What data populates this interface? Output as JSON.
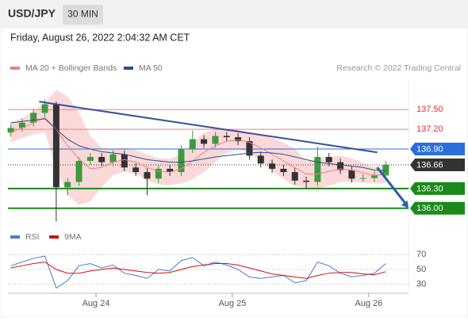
{
  "header": {
    "symbol": "USD/JPY",
    "interval": "30 MIN",
    "timestamp": "Friday, August 26, 2022 2:04:32 AM CET",
    "credit": "Research © 2022 Trading Central"
  },
  "chart_data": [
    {
      "type": "candlestick",
      "xlim": [
        -1,
        140
      ],
      "ylim": [
        135.72,
        137.72
      ],
      "up_color": "#3c9b3c",
      "down_color": "#333333",
      "x": [
        0,
        4,
        8,
        12,
        16,
        20,
        24,
        28,
        32,
        36,
        40,
        44,
        48,
        52,
        56,
        60,
        64,
        68,
        72,
        76,
        80,
        84,
        88,
        92,
        96,
        100,
        104,
        108,
        112,
        116,
        120,
        124,
        128,
        132
      ],
      "open": [
        137.15,
        137.22,
        137.3,
        137.45,
        137.58,
        136.32,
        136.4,
        136.72,
        136.78,
        136.7,
        136.82,
        136.62,
        136.55,
        136.45,
        136.6,
        136.55,
        136.9,
        137.05,
        136.98,
        137.1,
        137.08,
        137.02,
        136.8,
        136.68,
        136.6,
        136.55,
        136.42,
        136.4,
        136.78,
        136.7,
        136.58,
        136.45,
        136.46,
        136.5
      ],
      "high": [
        137.28,
        137.36,
        137.51,
        137.65,
        137.62,
        136.46,
        136.78,
        136.84,
        136.84,
        136.88,
        136.88,
        136.68,
        136.61,
        136.66,
        136.66,
        136.96,
        137.18,
        137.11,
        137.16,
        137.16,
        137.14,
        137.08,
        136.86,
        136.74,
        136.66,
        136.61,
        136.48,
        136.94,
        136.84,
        136.76,
        136.64,
        136.52,
        136.56,
        136.72
      ],
      "low": [
        137.09,
        137.16,
        137.24,
        137.39,
        135.8,
        136.2,
        136.34,
        136.66,
        136.64,
        136.64,
        136.56,
        136.49,
        136.2,
        136.39,
        136.49,
        136.49,
        136.84,
        136.92,
        136.92,
        137.02,
        136.96,
        136.74,
        136.62,
        136.54,
        136.49,
        136.36,
        136.3,
        136.34,
        136.64,
        136.52,
        136.39,
        136.4,
        136.4,
        136.44
      ],
      "close": [
        137.22,
        137.3,
        137.45,
        137.58,
        136.32,
        136.4,
        136.72,
        136.78,
        136.7,
        136.82,
        136.62,
        136.55,
        136.45,
        136.6,
        136.55,
        136.9,
        137.05,
        136.98,
        137.1,
        137.08,
        137.02,
        136.8,
        136.68,
        136.6,
        136.55,
        136.42,
        136.4,
        136.78,
        136.7,
        136.58,
        136.45,
        136.46,
        136.5,
        136.66
      ],
      "series": [
        {
          "name": "MA 20 + Bollinger Bands",
          "color": "#f08080",
          "band_color": "#fbd9d9",
          "values": [
            137.15,
            137.22,
            137.3,
            137.38,
            137.2,
            136.95,
            136.75,
            136.6,
            136.62,
            136.7,
            136.74,
            136.7,
            136.62,
            136.56,
            136.55,
            136.6,
            136.72,
            136.85,
            136.95,
            137.02,
            137.04,
            137.0,
            136.92,
            136.82,
            136.72,
            136.62,
            136.52,
            136.52,
            136.56,
            136.6,
            136.58,
            136.54,
            136.5,
            136.52
          ],
          "upper": [
            137.3,
            137.37,
            137.48,
            137.6,
            137.8,
            137.7,
            137.45,
            137.1,
            136.92,
            136.9,
            136.92,
            136.88,
            136.82,
            136.76,
            136.75,
            136.82,
            137.0,
            137.15,
            137.2,
            137.2,
            137.19,
            137.15,
            137.12,
            137.07,
            137.0,
            136.9,
            136.72,
            136.74,
            136.78,
            136.8,
            136.76,
            136.69,
            136.62,
            136.66
          ],
          "lower": [
            137.0,
            137.07,
            137.12,
            137.16,
            136.6,
            136.2,
            136.05,
            136.1,
            136.32,
            136.5,
            136.56,
            136.52,
            136.42,
            136.36,
            136.35,
            136.38,
            136.44,
            136.55,
            136.7,
            136.84,
            136.89,
            136.85,
            136.72,
            136.57,
            136.44,
            136.34,
            136.32,
            136.3,
            136.34,
            136.4,
            136.4,
            136.39,
            136.38,
            136.38
          ]
        },
        {
          "name": "MA 50",
          "color": "#2c4f8c",
          "values": [
            137.3,
            137.32,
            137.34,
            137.36,
            137.2,
            137.05,
            136.95,
            136.9,
            136.86,
            136.84,
            136.82,
            136.78,
            136.74,
            136.72,
            136.7,
            136.7,
            136.72,
            136.75,
            136.78,
            136.8,
            136.82,
            136.84,
            136.85,
            136.84,
            136.82,
            136.78,
            136.74,
            136.7,
            136.68,
            136.66,
            136.64,
            136.62,
            136.58,
            136.57
          ]
        }
      ],
      "levels": [
        {
          "value": 137.5,
          "label": "137.50",
          "kind": "resistance",
          "color": "#e03030"
        },
        {
          "value": 137.2,
          "label": "137.20",
          "kind": "resistance",
          "color": "#e03030"
        },
        {
          "value": 136.9,
          "label": "136.90",
          "kind": "pivot",
          "color": "#2a6fdb"
        },
        {
          "value": 136.66,
          "label": "136.66",
          "kind": "current",
          "color": "#333333"
        },
        {
          "value": 136.3,
          "label": "136.30",
          "kind": "support",
          "color": "#1a8a1a"
        },
        {
          "value": 136.0,
          "label": "136.00",
          "kind": "support",
          "color": "#1a8a1a"
        }
      ],
      "trendline": {
        "x": [
          10,
          129
        ],
        "y": [
          137.62,
          136.85
        ],
        "color": "#3a4f9a"
      },
      "arrow": {
        "x": [
          129,
          140
        ],
        "y": [
          136.62,
          136.0
        ],
        "color": "#2a5fa8"
      }
    },
    {
      "type": "line",
      "xlim": [
        -1,
        140
      ],
      "ylim": [
        18,
        82
      ],
      "yticks": [
        70,
        50,
        30
      ],
      "xticks": [
        {
          "value": 30,
          "label": "Aug 24"
        },
        {
          "value": 78,
          "label": "Aug 25"
        },
        {
          "value": 126,
          "label": "Aug 26"
        }
      ],
      "x": [
        0,
        4,
        8,
        12,
        16,
        20,
        24,
        28,
        32,
        36,
        40,
        44,
        48,
        52,
        56,
        60,
        64,
        68,
        72,
        76,
        80,
        84,
        88,
        92,
        96,
        100,
        104,
        108,
        112,
        116,
        120,
        124,
        128,
        132
      ],
      "series": [
        {
          "name": "RSI",
          "color": "#4a78d8",
          "values": [
            55,
            60,
            65,
            68,
            25,
            35,
            55,
            58,
            52,
            56,
            45,
            42,
            38,
            50,
            48,
            62,
            66,
            55,
            60,
            56,
            50,
            40,
            38,
            40,
            42,
            32,
            35,
            60,
            55,
            45,
            40,
            42,
            45,
            58
          ]
        },
        {
          "name": "9MA",
          "color": "#d01010",
          "values": [
            52,
            55,
            58,
            60,
            50,
            45,
            45,
            48,
            50,
            52,
            50,
            48,
            46,
            45,
            46,
            50,
            54,
            56,
            58,
            58,
            56,
            52,
            48,
            44,
            42,
            40,
            38,
            42,
            45,
            46,
            46,
            44,
            43,
            47
          ]
        }
      ]
    }
  ]
}
